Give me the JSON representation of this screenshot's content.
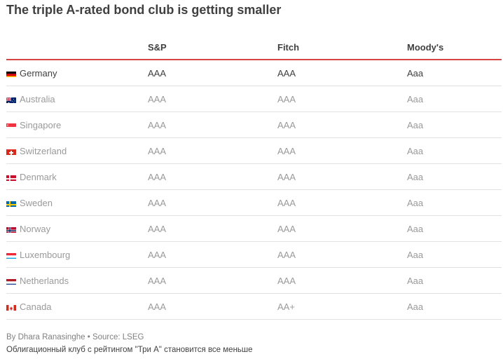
{
  "title": "The triple A-rated bond club is getting smaller",
  "chart_data": {
    "type": "table",
    "columns": [
      "",
      "S&P",
      "Fitch",
      "Moody's"
    ],
    "rows": [
      {
        "country": "Germany",
        "flag": "germany-flag-icon",
        "sp": "AAA",
        "fitch": "AAA",
        "moodys": "Aaa",
        "highlight": true
      },
      {
        "country": "Australia",
        "flag": "australia-flag-icon",
        "sp": "AAA",
        "fitch": "AAA",
        "moodys": "Aaa",
        "highlight": false
      },
      {
        "country": "Singapore",
        "flag": "singapore-flag-icon",
        "sp": "AAA",
        "fitch": "AAA",
        "moodys": "Aaa",
        "highlight": false
      },
      {
        "country": "Switzerland",
        "flag": "switzerland-flag-icon",
        "sp": "AAA",
        "fitch": "AAA",
        "moodys": "Aaa",
        "highlight": false
      },
      {
        "country": "Denmark",
        "flag": "denmark-flag-icon",
        "sp": "AAA",
        "fitch": "AAA",
        "moodys": "Aaa",
        "highlight": false
      },
      {
        "country": "Sweden",
        "flag": "sweden-flag-icon",
        "sp": "AAA",
        "fitch": "AAA",
        "moodys": "Aaa",
        "highlight": false
      },
      {
        "country": "Norway",
        "flag": "norway-flag-icon",
        "sp": "AAA",
        "fitch": "AAA",
        "moodys": "Aaa",
        "highlight": false
      },
      {
        "country": "Luxembourg",
        "flag": "luxembourg-flag-icon",
        "sp": "AAA",
        "fitch": "AAA",
        "moodys": "Aaa",
        "highlight": false
      },
      {
        "country": "Netherlands",
        "flag": "netherlands-flag-icon",
        "sp": "AAA",
        "fitch": "AAA",
        "moodys": "Aaa",
        "highlight": false
      },
      {
        "country": "Canada",
        "flag": "canada-flag-icon",
        "sp": "AAA",
        "fitch": "AA+",
        "moodys": "Aaa",
        "highlight": false
      }
    ]
  },
  "colors": {
    "accent_rule": "#d64541",
    "header_text": "#404040",
    "muted_text": "#9a9a9a"
  },
  "footer": {
    "byline": "By Dhara Ranasinghe",
    "separator": "•",
    "source": "Source: LSEG",
    "caption": "Облигационный клуб с рейтингом \"Три А\" становится все меньше"
  }
}
